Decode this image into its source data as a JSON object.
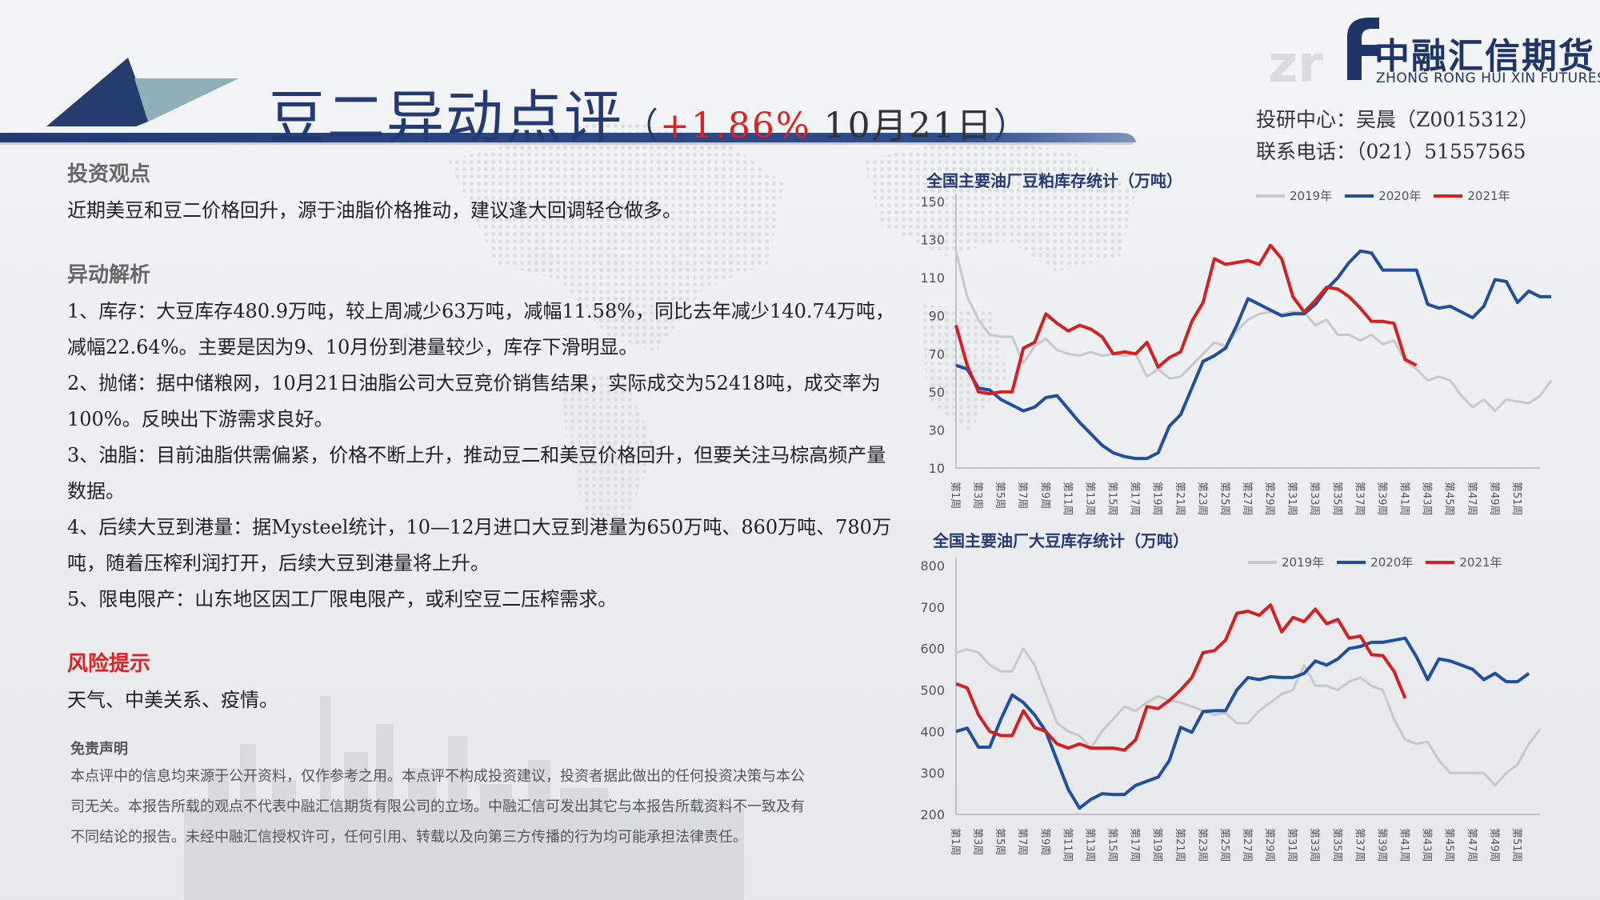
{
  "header": {
    "title_main": "豆二异动点评",
    "title_open": "（",
    "title_pct": "+1.86%",
    "title_date": " 10月21日",
    "title_close": "）"
  },
  "logo": {
    "mark": "zrf",
    "cn": "中融汇信期货",
    "en": "ZHONG RONG HUI XIN FUTURES"
  },
  "contact": {
    "line1": "投研中心：吴晨（Z0015312）",
    "line2": "联系电话：（021）51557565"
  },
  "body": {
    "view_heading": "投资观点",
    "view_text": "近期美豆和豆二价格回升，源于油脂价格推动，建议逢大回调轻仓做多。",
    "analysis_heading": "异动解析",
    "analysis_items": [
      "1、库存：大豆库存480.9万吨，较上周减少63万吨，减幅11.58%，同比去年减少140.74万吨，减幅22.64%。主要是因为9、10月份到港量较少，库存下滑明显。",
      "2、抛储：据中储粮网，10月21日油脂公司大豆竞价销售结果，实际成交为52418吨，成交率为100%。反映出下游需求良好。",
      "3、油脂：目前油脂供需偏紧，价格不断上升，推动豆二和美豆价格回升，但要关注马棕高频产量数据。",
      "4、后续大豆到港量：据Mysteel统计，10—12月进口大豆到港量为650万吨、860万吨、780万吨，随着压榨利润打开，后续大豆到港量将上升。",
      "5、限电限产：山东地区因工厂限电限产，或利空豆二压榨需求。"
    ],
    "risk_heading": "风险提示",
    "risk_text": "天气、中美关系、疫情。"
  },
  "disclaimer": {
    "heading": "免责声明",
    "text": "本点评中的信息均来源于公开资料，仅作参考之用。本点评不构成投资建议，投资者据此做出的任何投资决策与本公司无关。本报告所载的观点不代表中融汇信期货有限公司的立场。中融汇信可发出其它与本报告所载资料不一致及有不同结论的报告。未经中融汇信授权许可，任何引用、转载以及向第三方传播的行为均可能承担法律责任。"
  },
  "chart_data": [
    {
      "type": "line",
      "title": "全国主要油厂豆粕库存统计（万吨）",
      "xlabel": "",
      "ylabel": "",
      "ylim": [
        10,
        150
      ],
      "yticks": [
        "10",
        "30",
        "50",
        "70",
        "90",
        "110",
        "130",
        "150"
      ],
      "xticks": [
        "第1周",
        "第3周",
        "第5周",
        "第7周",
        "第9周",
        "第11周",
        "第13周",
        "第15周",
        "第17周",
        "第19周",
        "第21周",
        "第23周",
        "第25周",
        "第27周",
        "第29周",
        "第31周",
        "第33周",
        "第35周",
        "第37周",
        "第39周",
        "第41周",
        "第43周",
        "第45周",
        "第47周",
        "第49周",
        "第51周"
      ],
      "legend_position": "top-right",
      "series": [
        {
          "name": "2019年",
          "color": "#c8c8c8",
          "values": [
            124,
            100,
            88,
            80,
            79,
            79,
            65,
            74,
            78,
            72,
            70,
            69,
            71,
            69,
            70,
            69,
            70,
            58,
            62,
            57,
            58,
            64,
            70,
            76,
            74,
            82,
            88,
            91,
            92,
            91,
            92,
            92,
            85,
            88,
            80,
            80,
            77,
            80,
            75,
            77,
            66,
            62,
            56,
            58,
            56,
            48,
            42,
            46,
            40,
            46,
            45,
            44,
            48,
            56
          ]
        },
        {
          "name": "2020年",
          "color": "#1f4f9e",
          "values": [
            64,
            62,
            52,
            51,
            46,
            43,
            40,
            42,
            47,
            48,
            41,
            34,
            28,
            22,
            18,
            16,
            15,
            15,
            18,
            32,
            38,
            52,
            66,
            69,
            73,
            85,
            99,
            96,
            93,
            90,
            91,
            91,
            96,
            104,
            110,
            118,
            124,
            123,
            114,
            114,
            114,
            114,
            96,
            94,
            95,
            92,
            89,
            95,
            109,
            108,
            97,
            103,
            100,
            100
          ]
        },
        {
          "name": "2021年",
          "color": "#d42020",
          "values": [
            85,
            64,
            50,
            49,
            50,
            50,
            73,
            76,
            91,
            86,
            82,
            85,
            83,
            79,
            70,
            71,
            70,
            76,
            63,
            68,
            71,
            87,
            97,
            120,
            117,
            118,
            119,
            117,
            127,
            120,
            100,
            92,
            98,
            105,
            104,
            100,
            94,
            87,
            87,
            86,
            67,
            64
          ]
        }
      ]
    },
    {
      "type": "line",
      "title": "全国主要油厂大豆库存统计（万吨）",
      "xlabel": "",
      "ylabel": "",
      "ylim": [
        200,
        800
      ],
      "yticks": [
        "200",
        "300",
        "400",
        "500",
        "600",
        "700",
        "800"
      ],
      "xticks": [
        "第1周",
        "第3周",
        "第5周",
        "第7周",
        "第9周",
        "第11周",
        "第13周",
        "第15周",
        "第17周",
        "第19周",
        "第21周",
        "第23周",
        "第25周",
        "第27周",
        "第29周",
        "第31周",
        "第33周",
        "第35周",
        "第37周",
        "第39周",
        "第41周",
        "第43周",
        "第45周",
        "第47周",
        "第49周",
        "第51周"
      ],
      "legend_position": "top-right",
      "series": [
        {
          "name": "2019年",
          "color": "#c8c8c8",
          "values": [
            590,
            598,
            590,
            560,
            545,
            545,
            600,
            560,
            490,
            420,
            400,
            390,
            360,
            400,
            430,
            460,
            450,
            470,
            485,
            475,
            470,
            460,
            450,
            440,
            445,
            420,
            420,
            450,
            470,
            490,
            500,
            560,
            510,
            510,
            500,
            520,
            530,
            510,
            500,
            430,
            380,
            370,
            375,
            330,
            300,
            300,
            300,
            300,
            270,
            300,
            320,
            370,
            405
          ]
        },
        {
          "name": "2020年",
          "color": "#1f4f9e",
          "values": [
            400,
            408,
            362,
            362,
            430,
            488,
            470,
            440,
            400,
            330,
            260,
            215,
            236,
            250,
            248,
            248,
            270,
            280,
            290,
            330,
            410,
            398,
            448,
            450,
            450,
            500,
            530,
            525,
            532,
            530,
            530,
            540,
            570,
            560,
            575,
            600,
            605,
            615,
            615,
            620,
            625,
            580,
            525,
            575,
            570,
            560,
            550,
            525,
            540,
            520,
            520,
            540
          ]
        },
        {
          "name": "2021年",
          "color": "#d42020",
          "values": [
            515,
            505,
            440,
            400,
            390,
            390,
            450,
            410,
            400,
            370,
            360,
            370,
            360,
            360,
            360,
            355,
            380,
            460,
            455,
            475,
            500,
            530,
            590,
            595,
            620,
            685,
            690,
            680,
            705,
            640,
            675,
            665,
            695,
            660,
            670,
            625,
            630,
            585,
            583,
            545,
            480
          ]
        }
      ]
    }
  ]
}
